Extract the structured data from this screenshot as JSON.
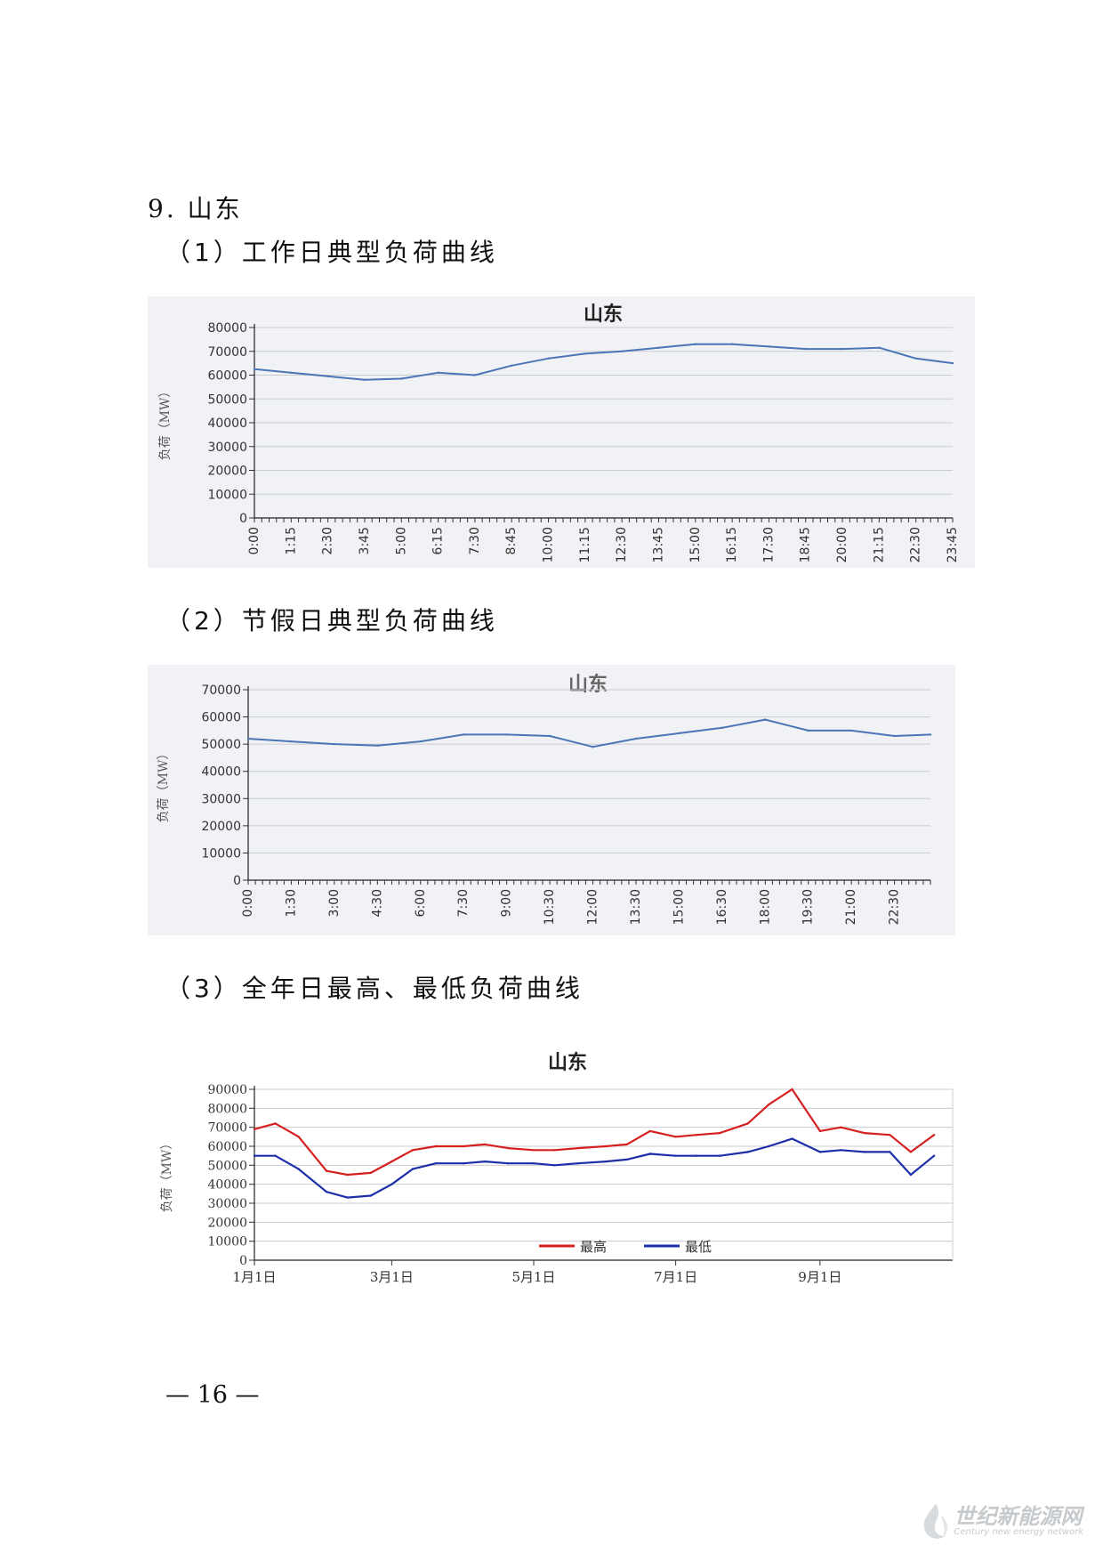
{
  "section": {
    "number": "9.",
    "title": "山东"
  },
  "subsections": [
    {
      "num": "1",
      "title": "工作日典型负荷曲线"
    },
    {
      "num": "2",
      "title": "节假日典型负荷曲线"
    },
    {
      "num": "3",
      "title": "全年日最高、最低负荷曲线"
    }
  ],
  "page_number": "— 16 —",
  "watermark": {
    "main": "世纪新能源网",
    "sub": "Century new energy network"
  },
  "chart_data": [
    {
      "type": "line",
      "title": "山东",
      "ylabel": "负荷（MW）",
      "ylim": [
        0,
        80000
      ],
      "yticks": [
        0,
        10000,
        20000,
        30000,
        40000,
        50000,
        60000,
        70000,
        80000
      ],
      "xtick_labels": [
        "0:00",
        "1:15",
        "2:30",
        "3:45",
        "5:00",
        "6:15",
        "7:30",
        "8:45",
        "10:00",
        "11:15",
        "12:30",
        "13:45",
        "15:00",
        "16:15",
        "17:30",
        "18:45",
        "20:00",
        "21:15",
        "22:30",
        "23:45"
      ],
      "grid": true,
      "series": [
        {
          "color": "#4a76b8",
          "x": [
            "0:00",
            "1:15",
            "2:30",
            "3:45",
            "5:00",
            "6:15",
            "7:30",
            "8:45",
            "10:00",
            "11:15",
            "12:30",
            "13:45",
            "15:00",
            "16:15",
            "17:30",
            "18:45",
            "20:00",
            "21:15",
            "22:30",
            "23:45"
          ],
          "values": [
            62500,
            61000,
            59500,
            58000,
            58500,
            61000,
            60000,
            64000,
            67000,
            69000,
            70000,
            71500,
            73000,
            73000,
            72000,
            71000,
            71000,
            71500,
            67000,
            65000
          ]
        }
      ]
    },
    {
      "type": "line",
      "title": "山东",
      "ylabel": "负荷（MW）",
      "ylim": [
        0,
        70000
      ],
      "yticks": [
        0,
        10000,
        20000,
        30000,
        40000,
        50000,
        60000,
        70000
      ],
      "xtick_labels": [
        "0:00",
        "1:30",
        "3:00",
        "4:30",
        "6:00",
        "7:30",
        "9:00",
        "10:30",
        "12:00",
        "13:30",
        "15:00",
        "16:30",
        "18:00",
        "19:30",
        "21:00",
        "22:30"
      ],
      "grid": true,
      "series": [
        {
          "color": "#4a76b8",
          "x": [
            "0:00",
            "1:30",
            "3:00",
            "4:30",
            "6:00",
            "7:30",
            "9:00",
            "10:30",
            "12:00",
            "13:30",
            "15:00",
            "16:30",
            "18:00",
            "19:30",
            "21:00",
            "22:30",
            "23:45"
          ],
          "values": [
            52000,
            51000,
            50000,
            49500,
            51000,
            53500,
            53500,
            53000,
            49000,
            52000,
            54000,
            56000,
            59000,
            55000,
            55000,
            53000,
            53500
          ]
        }
      ]
    },
    {
      "type": "line",
      "title": "山东",
      "ylabel": "负荷（MW）",
      "ylim": [
        0,
        90000
      ],
      "yticks": [
        0,
        10000,
        20000,
        30000,
        40000,
        50000,
        60000,
        70000,
        80000,
        90000
      ],
      "xtick_labels": [
        "1月1日",
        "3月1日",
        "5月1日",
        "7月1日",
        "9月1日"
      ],
      "grid": true,
      "legend": "bottom",
      "series": [
        {
          "name": "最高",
          "color": "#d62020",
          "x": [
            "1月1日",
            "1月10日",
            "1月20日",
            "2月1日",
            "2月10日",
            "2月20日",
            "3月1日",
            "3月10日",
            "3月20日",
            "4月1日",
            "4月10日",
            "4月20日",
            "5月1日",
            "5月10日",
            "5月20日",
            "6月1日",
            "6月10日",
            "6月20日",
            "7月1日",
            "7月10日",
            "7月20日",
            "8月1日",
            "8月10日",
            "8月20日",
            "9月1日",
            "9月10日",
            "9月20日",
            "10月1日",
            "10月10日",
            "10月20日"
          ],
          "values": [
            69000,
            72000,
            65000,
            47000,
            45000,
            46000,
            52000,
            58000,
            60000,
            60000,
            61000,
            59000,
            58000,
            58000,
            59000,
            60000,
            61000,
            68000,
            65000,
            66000,
            67000,
            72000,
            82000,
            90000,
            68000,
            70000,
            67000,
            66000,
            57000,
            66000
          ]
        },
        {
          "name": "最低",
          "color": "#1c2fa8",
          "x": [
            "1月1日",
            "1月10日",
            "1月20日",
            "2月1日",
            "2月10日",
            "2月20日",
            "3月1日",
            "3月10日",
            "3月20日",
            "4月1日",
            "4月10日",
            "4月20日",
            "5月1日",
            "5月10日",
            "5月20日",
            "6月1日",
            "6月10日",
            "6月20日",
            "7月1日",
            "7月10日",
            "7月20日",
            "8月1日",
            "8月10日",
            "8月20日",
            "9月1日",
            "9月10日",
            "9月20日",
            "10月1日",
            "10月10日",
            "10月20日"
          ],
          "values": [
            55000,
            55000,
            48000,
            36000,
            33000,
            34000,
            40000,
            48000,
            51000,
            51000,
            52000,
            51000,
            51000,
            50000,
            51000,
            52000,
            53000,
            56000,
            55000,
            55000,
            55000,
            57000,
            60000,
            64000,
            57000,
            58000,
            57000,
            57000,
            45000,
            55000
          ]
        }
      ]
    }
  ]
}
